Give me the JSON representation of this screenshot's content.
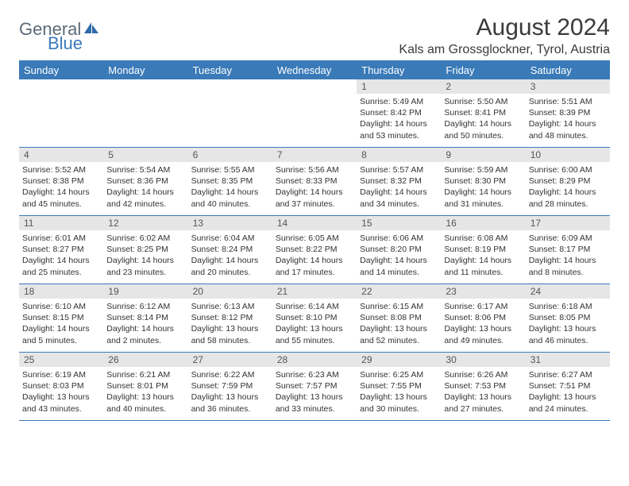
{
  "logo": {
    "text1": "General",
    "text2": "Blue"
  },
  "header": {
    "month_title": "August 2024",
    "location": "Kals am Grossglockner, Tyrol, Austria"
  },
  "colors": {
    "header_bg": "#3a7ab8",
    "header_text": "#ffffff",
    "daynum_bg": "#e6e6e6",
    "border": "#3a7ab8"
  },
  "day_names": [
    "Sunday",
    "Monday",
    "Tuesday",
    "Wednesday",
    "Thursday",
    "Friday",
    "Saturday"
  ],
  "weeks": [
    [
      null,
      null,
      null,
      null,
      {
        "n": "1",
        "sr": "Sunrise: 5:49 AM",
        "ss": "Sunset: 8:42 PM",
        "dl1": "Daylight: 14 hours",
        "dl2": "and 53 minutes."
      },
      {
        "n": "2",
        "sr": "Sunrise: 5:50 AM",
        "ss": "Sunset: 8:41 PM",
        "dl1": "Daylight: 14 hours",
        "dl2": "and 50 minutes."
      },
      {
        "n": "3",
        "sr": "Sunrise: 5:51 AM",
        "ss": "Sunset: 8:39 PM",
        "dl1": "Daylight: 14 hours",
        "dl2": "and 48 minutes."
      }
    ],
    [
      {
        "n": "4",
        "sr": "Sunrise: 5:52 AM",
        "ss": "Sunset: 8:38 PM",
        "dl1": "Daylight: 14 hours",
        "dl2": "and 45 minutes."
      },
      {
        "n": "5",
        "sr": "Sunrise: 5:54 AM",
        "ss": "Sunset: 8:36 PM",
        "dl1": "Daylight: 14 hours",
        "dl2": "and 42 minutes."
      },
      {
        "n": "6",
        "sr": "Sunrise: 5:55 AM",
        "ss": "Sunset: 8:35 PM",
        "dl1": "Daylight: 14 hours",
        "dl2": "and 40 minutes."
      },
      {
        "n": "7",
        "sr": "Sunrise: 5:56 AM",
        "ss": "Sunset: 8:33 PM",
        "dl1": "Daylight: 14 hours",
        "dl2": "and 37 minutes."
      },
      {
        "n": "8",
        "sr": "Sunrise: 5:57 AM",
        "ss": "Sunset: 8:32 PM",
        "dl1": "Daylight: 14 hours",
        "dl2": "and 34 minutes."
      },
      {
        "n": "9",
        "sr": "Sunrise: 5:59 AM",
        "ss": "Sunset: 8:30 PM",
        "dl1": "Daylight: 14 hours",
        "dl2": "and 31 minutes."
      },
      {
        "n": "10",
        "sr": "Sunrise: 6:00 AM",
        "ss": "Sunset: 8:29 PM",
        "dl1": "Daylight: 14 hours",
        "dl2": "and 28 minutes."
      }
    ],
    [
      {
        "n": "11",
        "sr": "Sunrise: 6:01 AM",
        "ss": "Sunset: 8:27 PM",
        "dl1": "Daylight: 14 hours",
        "dl2": "and 25 minutes."
      },
      {
        "n": "12",
        "sr": "Sunrise: 6:02 AM",
        "ss": "Sunset: 8:25 PM",
        "dl1": "Daylight: 14 hours",
        "dl2": "and 23 minutes."
      },
      {
        "n": "13",
        "sr": "Sunrise: 6:04 AM",
        "ss": "Sunset: 8:24 PM",
        "dl1": "Daylight: 14 hours",
        "dl2": "and 20 minutes."
      },
      {
        "n": "14",
        "sr": "Sunrise: 6:05 AM",
        "ss": "Sunset: 8:22 PM",
        "dl1": "Daylight: 14 hours",
        "dl2": "and 17 minutes."
      },
      {
        "n": "15",
        "sr": "Sunrise: 6:06 AM",
        "ss": "Sunset: 8:20 PM",
        "dl1": "Daylight: 14 hours",
        "dl2": "and 14 minutes."
      },
      {
        "n": "16",
        "sr": "Sunrise: 6:08 AM",
        "ss": "Sunset: 8:19 PM",
        "dl1": "Daylight: 14 hours",
        "dl2": "and 11 minutes."
      },
      {
        "n": "17",
        "sr": "Sunrise: 6:09 AM",
        "ss": "Sunset: 8:17 PM",
        "dl1": "Daylight: 14 hours",
        "dl2": "and 8 minutes."
      }
    ],
    [
      {
        "n": "18",
        "sr": "Sunrise: 6:10 AM",
        "ss": "Sunset: 8:15 PM",
        "dl1": "Daylight: 14 hours",
        "dl2": "and 5 minutes."
      },
      {
        "n": "19",
        "sr": "Sunrise: 6:12 AM",
        "ss": "Sunset: 8:14 PM",
        "dl1": "Daylight: 14 hours",
        "dl2": "and 2 minutes."
      },
      {
        "n": "20",
        "sr": "Sunrise: 6:13 AM",
        "ss": "Sunset: 8:12 PM",
        "dl1": "Daylight: 13 hours",
        "dl2": "and 58 minutes."
      },
      {
        "n": "21",
        "sr": "Sunrise: 6:14 AM",
        "ss": "Sunset: 8:10 PM",
        "dl1": "Daylight: 13 hours",
        "dl2": "and 55 minutes."
      },
      {
        "n": "22",
        "sr": "Sunrise: 6:15 AM",
        "ss": "Sunset: 8:08 PM",
        "dl1": "Daylight: 13 hours",
        "dl2": "and 52 minutes."
      },
      {
        "n": "23",
        "sr": "Sunrise: 6:17 AM",
        "ss": "Sunset: 8:06 PM",
        "dl1": "Daylight: 13 hours",
        "dl2": "and 49 minutes."
      },
      {
        "n": "24",
        "sr": "Sunrise: 6:18 AM",
        "ss": "Sunset: 8:05 PM",
        "dl1": "Daylight: 13 hours",
        "dl2": "and 46 minutes."
      }
    ],
    [
      {
        "n": "25",
        "sr": "Sunrise: 6:19 AM",
        "ss": "Sunset: 8:03 PM",
        "dl1": "Daylight: 13 hours",
        "dl2": "and 43 minutes."
      },
      {
        "n": "26",
        "sr": "Sunrise: 6:21 AM",
        "ss": "Sunset: 8:01 PM",
        "dl1": "Daylight: 13 hours",
        "dl2": "and 40 minutes."
      },
      {
        "n": "27",
        "sr": "Sunrise: 6:22 AM",
        "ss": "Sunset: 7:59 PM",
        "dl1": "Daylight: 13 hours",
        "dl2": "and 36 minutes."
      },
      {
        "n": "28",
        "sr": "Sunrise: 6:23 AM",
        "ss": "Sunset: 7:57 PM",
        "dl1": "Daylight: 13 hours",
        "dl2": "and 33 minutes."
      },
      {
        "n": "29",
        "sr": "Sunrise: 6:25 AM",
        "ss": "Sunset: 7:55 PM",
        "dl1": "Daylight: 13 hours",
        "dl2": "and 30 minutes."
      },
      {
        "n": "30",
        "sr": "Sunrise: 6:26 AM",
        "ss": "Sunset: 7:53 PM",
        "dl1": "Daylight: 13 hours",
        "dl2": "and 27 minutes."
      },
      {
        "n": "31",
        "sr": "Sunrise: 6:27 AM",
        "ss": "Sunset: 7:51 PM",
        "dl1": "Daylight: 13 hours",
        "dl2": "and 24 minutes."
      }
    ]
  ]
}
